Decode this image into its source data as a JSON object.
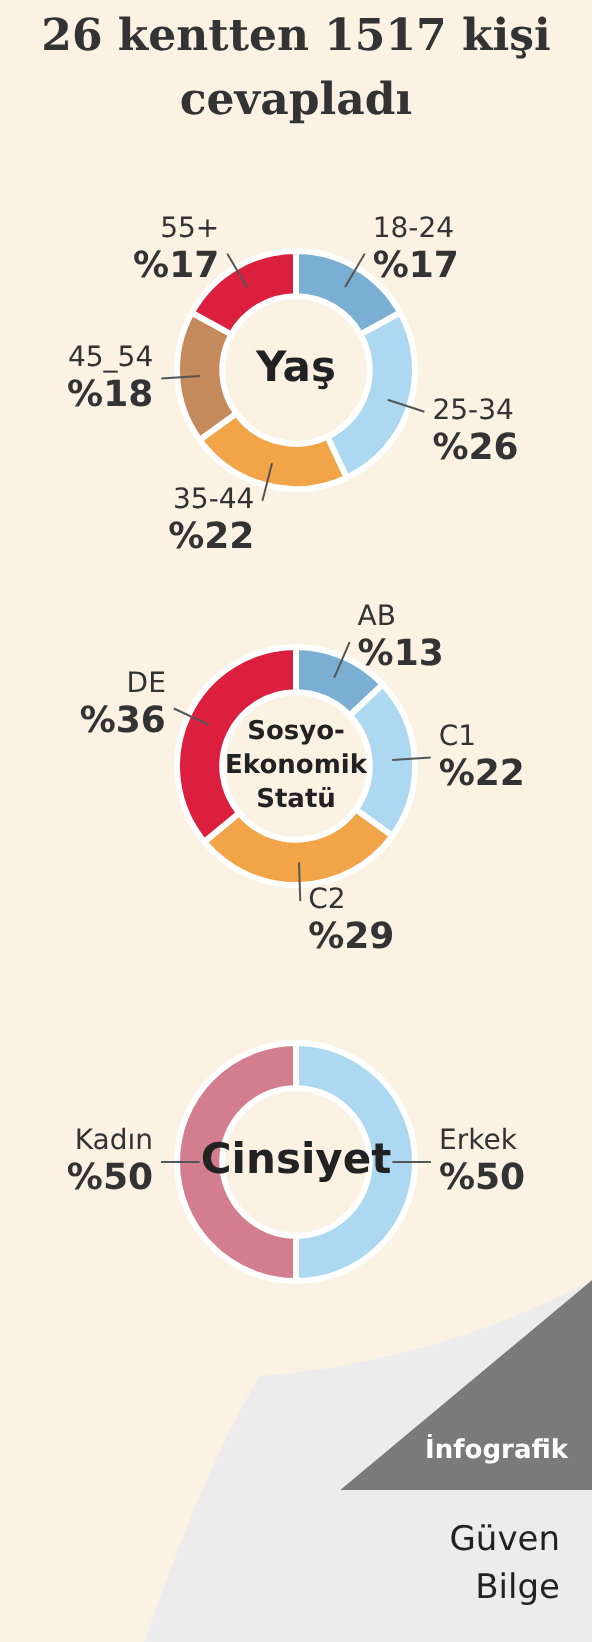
{
  "chart_data": [
    {
      "type": "donut",
      "title": "26 kentten 1517 kişi cevapladı",
      "annotations": [
        "Yaş"
      ],
      "legend": false,
      "categories": [
        "18-24",
        "25-34",
        "35-44",
        "45_54",
        "55+"
      ],
      "values": [
        17,
        26,
        22,
        18,
        17
      ],
      "value_labels": [
        "%17",
        "%26",
        "%22",
        "%18",
        "%17"
      ],
      "colors": [
        "#7aaed3",
        "#acd8f1",
        "#f2a448",
        "#c58a5b",
        "#dc1f3f"
      ]
    },
    {
      "type": "donut",
      "annotations": [
        "Sosyo-Ekonomik Statü"
      ],
      "legend": false,
      "categories": [
        "AB",
        "C1",
        "C2",
        "DE"
      ],
      "values": [
        13,
        22,
        29,
        36
      ],
      "value_labels": [
        "%13",
        "%22",
        "%29",
        "%36"
      ],
      "colors": [
        "#7aaed3",
        "#acd8f1",
        "#f2a448",
        "#dc1f3f"
      ]
    },
    {
      "type": "donut",
      "annotations": [
        "Cinsiyet",
        "İnfografik",
        "Güven Bilge"
      ],
      "legend": false,
      "categories": [
        "Erkek",
        "Kadın"
      ],
      "values": [
        50,
        50
      ],
      "value_labels": [
        "%50",
        "%50"
      ],
      "colors": [
        "#acd8f1",
        "#d27e8e"
      ]
    }
  ]
}
